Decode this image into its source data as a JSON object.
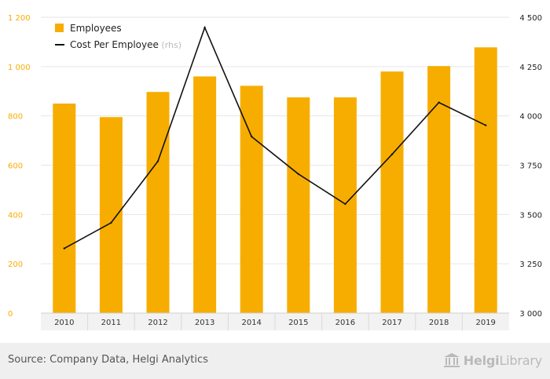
{
  "chart_data": {
    "type": "bar+line",
    "categories": [
      "2010",
      "2011",
      "2012",
      "2013",
      "2014",
      "2015",
      "2016",
      "2017",
      "2018",
      "2019"
    ],
    "series": [
      {
        "name": "Employees",
        "type": "bar",
        "axis": "left",
        "color": "#f7ad00",
        "values": [
          850,
          795,
          897,
          960,
          922,
          875,
          875,
          980,
          1002,
          1078
        ]
      },
      {
        "name": "Cost Per Employee",
        "type": "line",
        "axis": "right",
        "color": "#111111",
        "values": [
          3328,
          3458,
          3770,
          4448,
          3895,
          3705,
          3553,
          3805,
          4068,
          3952
        ]
      }
    ],
    "left_axis": {
      "range": [
        0,
        1200
      ],
      "ticks": [
        0,
        200,
        400,
        600,
        800,
        1000,
        1200
      ],
      "tick_labels": [
        "0",
        "200",
        "400",
        "600",
        "800",
        "1 000",
        "1 200"
      ],
      "tick_color": "#f7ad00"
    },
    "right_axis": {
      "range": [
        3000,
        4500
      ],
      "ticks": [
        3000,
        3250,
        3500,
        3750,
        4000,
        4250,
        4500
      ],
      "tick_labels": [
        "3 000",
        "3 250",
        "3 500",
        "3 750",
        "4 000",
        "4 250",
        "4 500"
      ]
    },
    "legend": {
      "position": "top-left",
      "items": [
        {
          "label": "Employees",
          "suffix": ""
        },
        {
          "label": "Cost Per Employee",
          "suffix": "(rhs)"
        }
      ]
    },
    "grid": true
  },
  "footer": {
    "source": "Source: Company Data, Helgi Analytics",
    "brand_part1": "Helgi",
    "brand_part2": "Library"
  }
}
